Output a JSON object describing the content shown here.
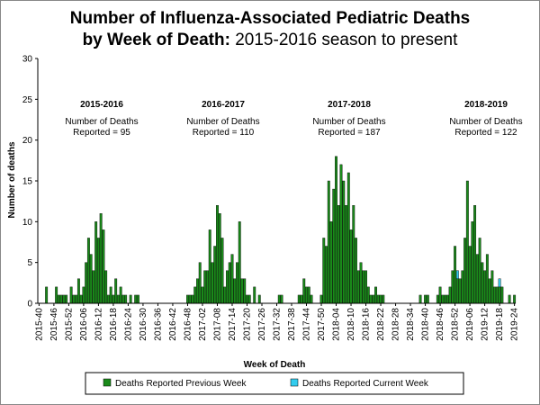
{
  "chart_data": {
    "type": "stacked_bar",
    "title_line1": "Number of Influenza-Associated Pediatric Deaths",
    "title_bold": "by Week of Death:",
    "title_rest": "2015-2016 season to present",
    "y_label": "Number of deaths",
    "x_label": "Week of Death",
    "ylim": [
      0,
      30
    ],
    "yticks": [
      0,
      5,
      10,
      15,
      20,
      25,
      30
    ],
    "annotations": [
      {
        "season": "2015-2016",
        "note": [
          "Number of Deaths",
          "Reported = 95"
        ]
      },
      {
        "season": "2016-2017",
        "note": [
          "Number of Deaths",
          "Reported = 110"
        ]
      },
      {
        "season": "2017-2018",
        "note": [
          "Number of Deaths",
          "Reported = 187"
        ]
      },
      {
        "season": "2018-2019",
        "note": [
          "Number of Deaths",
          "Reported = 122"
        ]
      }
    ],
    "categories": [
      "2015-40",
      null,
      null,
      null,
      null,
      null,
      "2015-46",
      null,
      null,
      null,
      null,
      null,
      "2015-52",
      null,
      null,
      null,
      null,
      null,
      "2016-06",
      null,
      null,
      null,
      null,
      null,
      "2016-12",
      null,
      null,
      null,
      null,
      null,
      "2016-18",
      null,
      null,
      null,
      null,
      null,
      "2016-24",
      null,
      null,
      null,
      null,
      null,
      "2016-30",
      null,
      null,
      null,
      null,
      null,
      "2016-36",
      null,
      null,
      null,
      null,
      null,
      "2016-42",
      null,
      null,
      null,
      null,
      null,
      "2016-48",
      null,
      null,
      null,
      null,
      null,
      "2017-02",
      null,
      null,
      null,
      null,
      null,
      "2017-08",
      null,
      null,
      null,
      null,
      null,
      "2017-14",
      null,
      null,
      null,
      null,
      null,
      "2017-20",
      null,
      null,
      null,
      null,
      null,
      "2017-26",
      null,
      null,
      null,
      null,
      null,
      "2017-32",
      null,
      null,
      null,
      null,
      null,
      "2017-38",
      null,
      null,
      null,
      null,
      null,
      "2017-44",
      null,
      null,
      null,
      null,
      null,
      "2017-50",
      null,
      null,
      null,
      null,
      null,
      "2018-04",
      null,
      null,
      null,
      null,
      null,
      "2018-10",
      null,
      null,
      null,
      null,
      null,
      "2018-16",
      null,
      null,
      null,
      null,
      null,
      "2018-22",
      null,
      null,
      null,
      null,
      null,
      "2018-28",
      null,
      null,
      null,
      null,
      null,
      "2018-34",
      null,
      null,
      null,
      null,
      null,
      "2018-40",
      null,
      null,
      null,
      null,
      null,
      "2018-46",
      null,
      null,
      null,
      null,
      null,
      "2018-52",
      null,
      null,
      null,
      null,
      null,
      "2019-06",
      null,
      null,
      null,
      null,
      null,
      "2019-12",
      null,
      null,
      null,
      null,
      null,
      "2019-18",
      null,
      null,
      null,
      null,
      null,
      "2019-24"
    ],
    "series": [
      {
        "name": "Deaths Reported Previous Week",
        "color": "#1a8a1a",
        "values": [
          0,
          0,
          0,
          2,
          0,
          0,
          0,
          2,
          1,
          1,
          1,
          1,
          0,
          2,
          1,
          1,
          3,
          1,
          2,
          5,
          8,
          6,
          4,
          10,
          8,
          11,
          9,
          4,
          1,
          2,
          1,
          3,
          1,
          2,
          1,
          1,
          0,
          1,
          0,
          1,
          1,
          0,
          0,
          0,
          0,
          0,
          0,
          0,
          0,
          0,
          0,
          0,
          0,
          0,
          0,
          0,
          0,
          0,
          0,
          0,
          1,
          1,
          1,
          2,
          3,
          5,
          2,
          4,
          4,
          9,
          5,
          7,
          12,
          11,
          8,
          2,
          4,
          5,
          6,
          3,
          5,
          10,
          3,
          3,
          1,
          1,
          0,
          2,
          0,
          1,
          0,
          0,
          0,
          0,
          0,
          0,
          0,
          1,
          1,
          0,
          0,
          0,
          0,
          0,
          0,
          1,
          1,
          3,
          2,
          2,
          1,
          0,
          0,
          0,
          1,
          8,
          7,
          15,
          10,
          14,
          18,
          12,
          17,
          15,
          12,
          16,
          9,
          12,
          8,
          4,
          5,
          4,
          4,
          2,
          1,
          1,
          2,
          1,
          1,
          1,
          0,
          0,
          0,
          0,
          0,
          0,
          0,
          0,
          0,
          0,
          0,
          0,
          0,
          0,
          1,
          0,
          1,
          1,
          0,
          0,
          0,
          1,
          2,
          1,
          1,
          1,
          2,
          4,
          7,
          3,
          3,
          4,
          8,
          15,
          7,
          10,
          12,
          6,
          8,
          5,
          4,
          6,
          3,
          4,
          2,
          2,
          2,
          2,
          0,
          0,
          1,
          0,
          1
        ]
      },
      {
        "name": "Deaths Reported Current Week",
        "color": "#33ccee",
        "values": [
          0,
          0,
          0,
          0,
          0,
          0,
          0,
          0,
          0,
          0,
          0,
          0,
          0,
          0,
          0,
          0,
          0,
          0,
          0,
          0,
          0,
          0,
          0,
          0,
          0,
          0,
          0,
          0,
          0,
          0,
          0,
          0,
          0,
          0,
          0,
          0,
          0,
          0,
          0,
          0,
          0,
          0,
          0,
          0,
          0,
          0,
          0,
          0,
          0,
          0,
          0,
          0,
          0,
          0,
          0,
          0,
          0,
          0,
          0,
          0,
          0,
          0,
          0,
          0,
          0,
          0,
          0,
          0,
          0,
          0,
          0,
          0,
          0,
          0,
          0,
          0,
          0,
          0,
          0,
          0,
          0,
          0,
          0,
          0,
          0,
          0,
          0,
          0,
          0,
          0,
          0,
          0,
          0,
          0,
          0,
          0,
          0,
          0,
          0,
          0,
          0,
          0,
          0,
          0,
          0,
          0,
          0,
          0,
          0,
          0,
          0,
          0,
          0,
          0,
          0,
          0,
          0,
          0,
          0,
          0,
          0,
          0,
          0,
          0,
          0,
          0,
          0,
          0,
          0,
          0,
          0,
          0,
          0,
          0,
          0,
          0,
          0,
          0,
          0,
          0,
          0,
          0,
          0,
          0,
          0,
          0,
          0,
          0,
          0,
          0,
          0,
          0,
          0,
          0,
          0,
          0,
          0,
          0,
          0,
          0,
          0,
          0,
          0,
          0,
          0,
          0,
          0,
          0,
          0,
          1,
          0,
          0,
          0,
          0,
          0,
          0,
          0,
          0,
          0,
          0,
          0,
          0,
          0,
          0,
          0,
          0,
          1,
          0,
          0,
          0,
          0,
          0,
          0
        ]
      }
    ]
  }
}
